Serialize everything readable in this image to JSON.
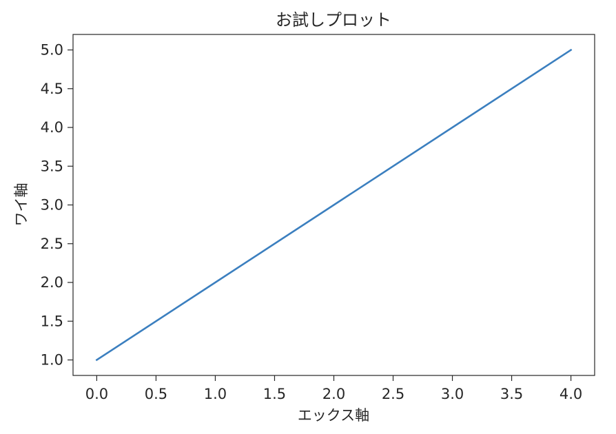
{
  "chart_data": {
    "type": "line",
    "title": "お試しプロット",
    "xlabel": "エックス軸",
    "ylabel": "ワイ軸",
    "x": [
      0,
      1,
      2,
      3,
      4
    ],
    "series": [
      {
        "values": [
          1,
          2,
          3,
          4,
          5
        ],
        "color": "#3b7fbf"
      }
    ],
    "xlim": [
      -0.2,
      4.2
    ],
    "ylim": [
      0.8,
      5.2
    ],
    "xticks": [
      0.0,
      0.5,
      1.0,
      1.5,
      2.0,
      2.5,
      3.0,
      3.5,
      4.0
    ],
    "xtick_labels": [
      "0.0",
      "0.5",
      "1.0",
      "1.5",
      "2.0",
      "2.5",
      "3.0",
      "3.5",
      "4.0"
    ],
    "yticks": [
      1.0,
      1.5,
      2.0,
      2.5,
      3.0,
      3.5,
      4.0,
      4.5,
      5.0
    ],
    "ytick_labels": [
      "1.0",
      "1.5",
      "2.0",
      "2.5",
      "3.0",
      "3.5",
      "4.0",
      "4.5",
      "5.0"
    ],
    "grid": false,
    "legend": "none"
  }
}
